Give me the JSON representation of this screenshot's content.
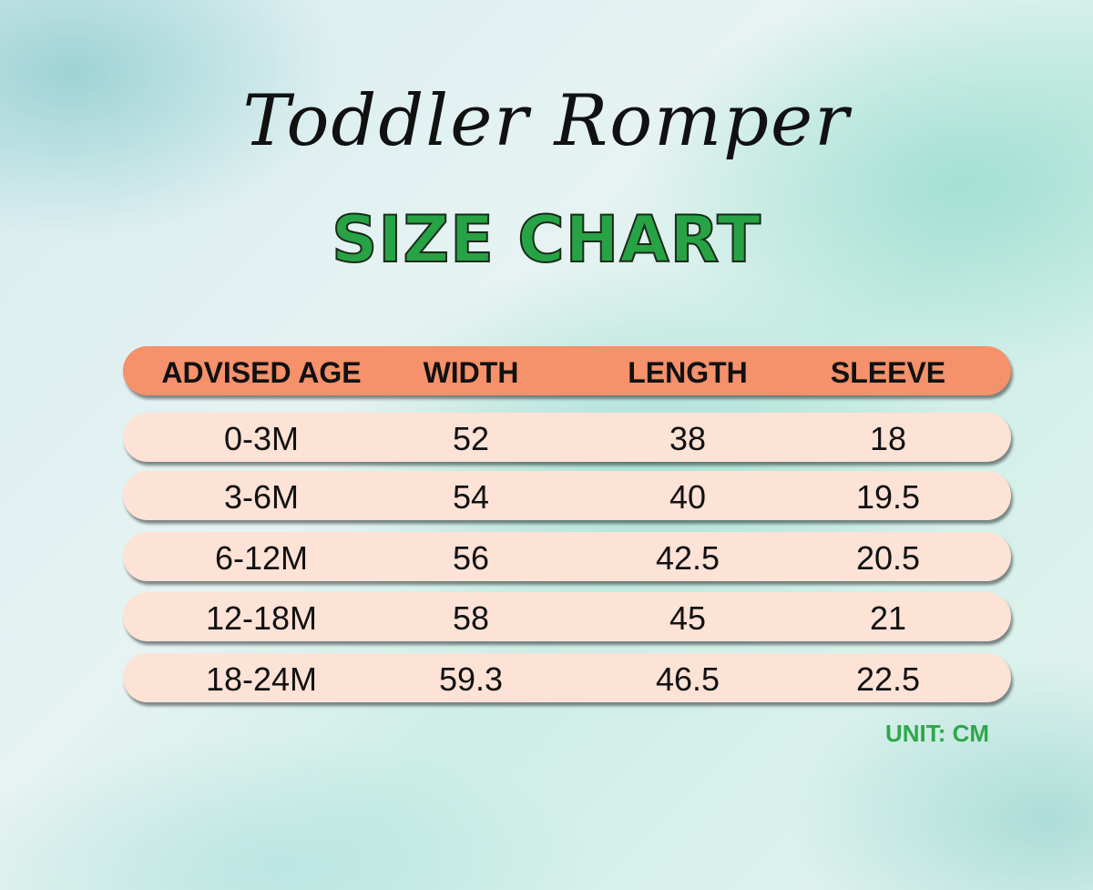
{
  "chart_data": {
    "type": "table",
    "title": "Toddler Romper",
    "subtitle": "SIZE CHART",
    "columns": [
      "ADVISED AGE",
      "WIDTH",
      "LENGTH",
      "SLEEVE"
    ],
    "rows": [
      [
        "0-3M",
        "52",
        "38",
        "18"
      ],
      [
        "3-6M",
        "54",
        "40",
        "19.5"
      ],
      [
        "6-12M",
        "56",
        "42.5",
        "20.5"
      ],
      [
        "12-18M",
        "58",
        "45",
        "21"
      ],
      [
        "18-24M",
        "59.3",
        "46.5",
        "22.5"
      ]
    ],
    "unit": "UNIT: CM",
    "colors": {
      "header": "#f5916b",
      "row": "#fde2d6",
      "subtitle": "#27a244",
      "unit": "#2ea84a"
    }
  }
}
